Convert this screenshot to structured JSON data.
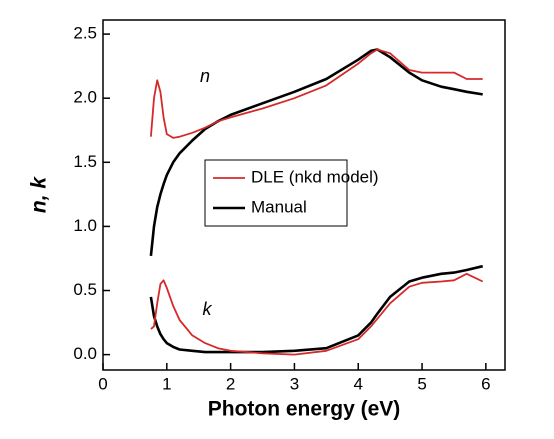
{
  "chart_data": {
    "type": "line",
    "xlabel": "Photon energy (eV)",
    "ylabel": "n, k",
    "annotations": [
      "n",
      "k"
    ],
    "x": [
      0.75,
      0.8,
      0.85,
      0.9,
      0.95,
      1.0,
      1.1,
      1.2,
      1.4,
      1.6,
      1.8,
      2.0,
      2.5,
      3.0,
      3.5,
      4.0,
      4.2,
      4.3,
      4.5,
      4.8,
      5.0,
      5.3,
      5.5,
      5.7,
      5.95
    ],
    "series": [
      {
        "name": "DLE (nkd model)",
        "color": "#d42a2a",
        "values": [
          1.7,
          2.0,
          2.14,
          2.05,
          1.85,
          1.72,
          1.69,
          1.7,
          1.73,
          1.77,
          1.82,
          1.85,
          1.92,
          2.0,
          2.1,
          2.27,
          2.35,
          2.38,
          2.35,
          2.22,
          2.2,
          2.2,
          2.2,
          2.15,
          2.15
        ],
        "k": [
          0.2,
          0.22,
          0.4,
          0.55,
          0.58,
          0.52,
          0.38,
          0.27,
          0.15,
          0.09,
          0.05,
          0.03,
          0.01,
          0.0,
          0.03,
          0.12,
          0.22,
          0.28,
          0.4,
          0.53,
          0.56,
          0.57,
          0.58,
          0.63,
          0.57
        ]
      },
      {
        "name": "Manual",
        "color": "#000000",
        "values": [
          0.77,
          1.0,
          1.15,
          1.25,
          1.33,
          1.4,
          1.5,
          1.57,
          1.67,
          1.76,
          1.82,
          1.87,
          1.96,
          2.05,
          2.15,
          2.3,
          2.37,
          2.38,
          2.32,
          2.2,
          2.14,
          2.09,
          2.07,
          2.05,
          2.03
        ],
        "k": [
          0.45,
          0.3,
          0.22,
          0.16,
          0.12,
          0.09,
          0.06,
          0.04,
          0.03,
          0.02,
          0.02,
          0.02,
          0.02,
          0.03,
          0.05,
          0.15,
          0.25,
          0.32,
          0.45,
          0.57,
          0.6,
          0.63,
          0.64,
          0.66,
          0.69
        ]
      }
    ],
    "xlim": [
      0,
      6.3
    ],
    "xticks": [
      0,
      1,
      2,
      3,
      4,
      5,
      6
    ],
    "ylim": [
      -0.12,
      2.61
    ],
    "yticks": [
      {
        "value": 0,
        "label": "0.0"
      },
      0.5,
      {
        "value": 1,
        "label": "1.0"
      },
      1.5,
      {
        "value": 2,
        "label": "2.0"
      },
      2.5
    ],
    "grid": false
  }
}
